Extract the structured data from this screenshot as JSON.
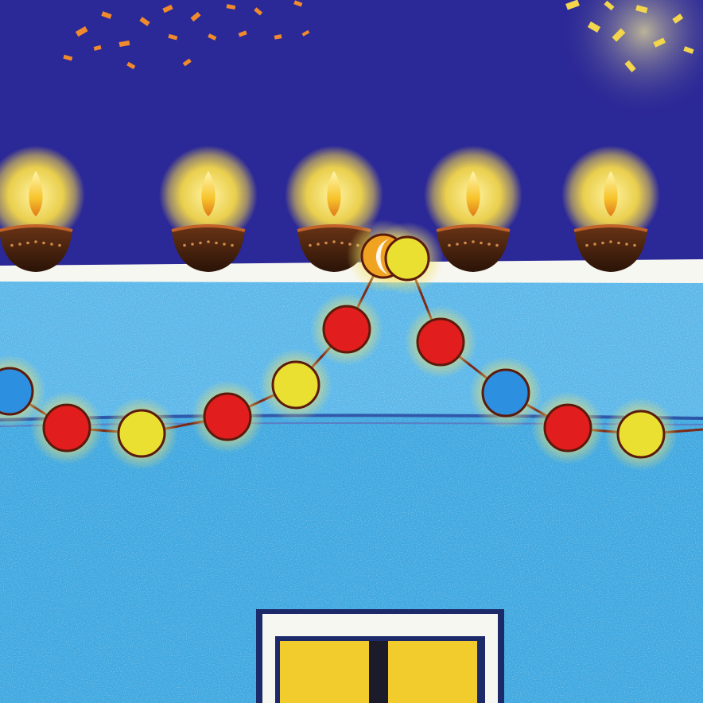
{
  "scene": {
    "description_visible_text": "",
    "colors": {
      "night_sky": "#2b2897",
      "wall_blue": "#3fa8e0",
      "wall_light": "#8fd3f5",
      "ledge_white": "#f7f7f2",
      "flame": "#f5c542",
      "glow": "#f4d84a",
      "diya_body": "#3a1c0c",
      "diya_rim": "#c0622a",
      "bulb_red": "#e21d1d",
      "bulb_yellow": "#e9e032",
      "bulb_blue": "#2d8fe0",
      "bulb_orange": "#f0a321",
      "wire": "#7b2a16",
      "window_yellow": "#f2cc2c",
      "window_frame": "#f7f7f2",
      "confetti_orange": "#f08a2c",
      "confetti_yellow": "#f3d64c"
    },
    "diyas": [
      {
        "label": "diya-1"
      },
      {
        "label": "diya-2"
      },
      {
        "label": "diya-3"
      },
      {
        "label": "diya-4"
      },
      {
        "label": "diya-5"
      }
    ],
    "bulbs": [
      {
        "color": "bulb_blue"
      },
      {
        "color": "bulb_red"
      },
      {
        "color": "bulb_yellow"
      },
      {
        "color": "bulb_red"
      },
      {
        "color": "bulb_yellow"
      },
      {
        "color": "bulb_red"
      },
      {
        "color": "bulb_orange"
      },
      {
        "color": "bulb_yellow"
      },
      {
        "color": "bulb_red"
      },
      {
        "color": "bulb_blue"
      },
      {
        "color": "bulb_red"
      },
      {
        "color": "bulb_yellow"
      }
    ]
  }
}
